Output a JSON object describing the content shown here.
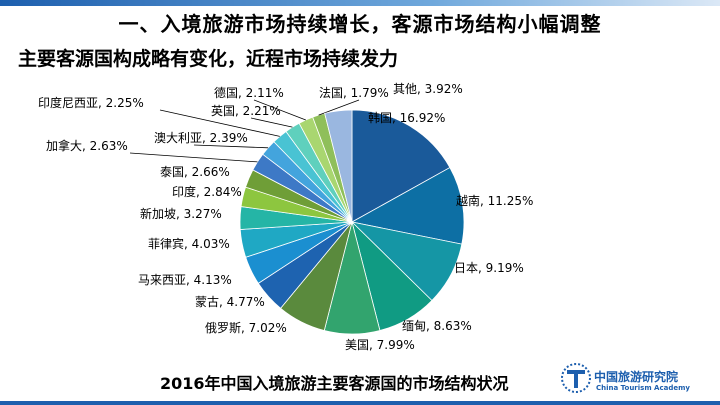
{
  "slide": {
    "title_line1": "一、入境旅游市场持续增长，客源市场结构小幅调整",
    "title_line2": "主要客源国构成略有变化，近程市场持续发力",
    "caption": "2016年中国入境旅游主要客源国的市场结构状况"
  },
  "logo": {
    "name_cn": "中国旅游研究院",
    "name_en": "China Tourism Academy"
  },
  "chart_data": {
    "type": "pie",
    "title": "",
    "slices": [
      {
        "label": "韩国",
        "value": 16.92,
        "text": "韩国, 16.92%",
        "color": "#1a5a9a"
      },
      {
        "label": "越南",
        "value": 11.25,
        "text": "越南, 11.25%",
        "color": "#0d6fa4"
      },
      {
        "label": "日本",
        "value": 9.19,
        "text": "日本, 9.19%",
        "color": "#1596a5"
      },
      {
        "label": "缅甸",
        "value": 8.63,
        "text": "缅甸, 8.63%",
        "color": "#109b83"
      },
      {
        "label": "美国",
        "value": 7.99,
        "text": "美国, 7.99%",
        "color": "#32a46e"
      },
      {
        "label": "俄罗斯",
        "value": 7.02,
        "text": "俄罗斯, 7.02%",
        "color": "#5a8a3d"
      },
      {
        "label": "蒙古",
        "value": 4.77,
        "text": "蒙古, 4.77%",
        "color": "#1e63b0"
      },
      {
        "label": "马来西亚",
        "value": 4.13,
        "text": "马来西亚, 4.13%",
        "color": "#1b8fd0"
      },
      {
        "label": "菲律宾",
        "value": 4.03,
        "text": "菲律宾, 4.03%",
        "color": "#1fa8c4"
      },
      {
        "label": "新加坡",
        "value": 3.27,
        "text": "新加坡, 3.27%",
        "color": "#25b5a6"
      },
      {
        "label": "印度",
        "value": 2.84,
        "text": "印度, 2.84%",
        "color": "#8dc63f"
      },
      {
        "label": "泰国",
        "value": 2.66,
        "text": "泰国, 2.66%",
        "color": "#6f9e37"
      },
      {
        "label": "加拿大",
        "value": 2.63,
        "text": "加拿大, 2.63%",
        "color": "#3d79c6"
      },
      {
        "label": "澳大利亚",
        "value": 2.39,
        "text": "澳大利亚, 2.39%",
        "color": "#43a4dd"
      },
      {
        "label": "印度尼西亚",
        "value": 2.25,
        "text": "印度尼西亚, 2.25%",
        "color": "#49c3d3"
      },
      {
        "label": "英国",
        "value": 2.21,
        "text": "英国, 2.21%",
        "color": "#5fd0bd"
      },
      {
        "label": "德国",
        "value": 2.11,
        "text": "德国, 2.11%",
        "color": "#a9d670"
      },
      {
        "label": "法国",
        "value": 1.79,
        "text": "法国, 1.79%",
        "color": "#8fbf5a"
      },
      {
        "label": "其他",
        "value": 3.92,
        "text": "其他, 3.92%",
        "color": "#9ab7e0"
      }
    ]
  }
}
